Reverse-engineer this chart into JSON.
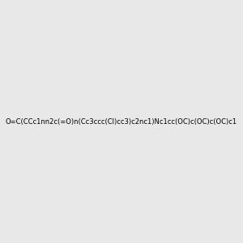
{
  "smiles": "O=C(CCc1nn2c(=O)n(Cc3ccc(Cl)cc3)c2nc1)Nc1cc(OC)c(OC)c(OC)c1",
  "image_size": 300,
  "background_color": "#e8e8e8",
  "title": ""
}
